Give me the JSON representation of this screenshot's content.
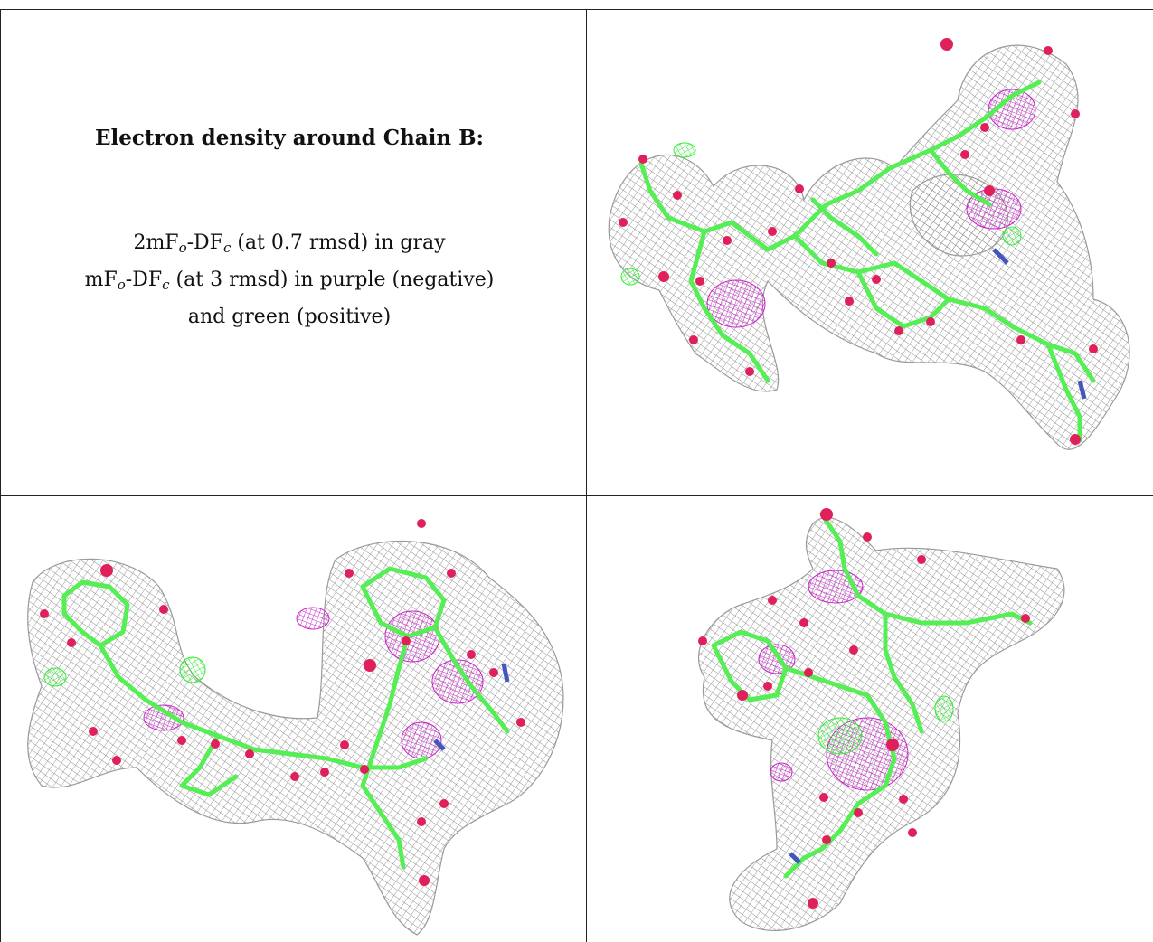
{
  "title": "Electron density around Chain B:",
  "legend": {
    "line1": {
      "prefix": "2mF",
      "sub1": "o",
      "mid": "-DF",
      "sub2": "c",
      "suffix": " (at 0.7 rmsd) in gray"
    },
    "line2": {
      "prefix": "mF",
      "sub1": "o",
      "mid": "-DF",
      "sub2": "c",
      "suffix": " (at 3 rmsd) in purple (negative)"
    },
    "line3": "and green (positive)"
  },
  "colors": {
    "mesh_gray": "#9a9a9a",
    "negative_purple": "#cc22cc",
    "positive_green": "#33ee33",
    "stick_green": "#55ee55",
    "oxygen_red": "#e0205a",
    "nitrogen_blue": "#4455bb"
  },
  "images": [
    {
      "name": "chain-b-density-view-1",
      "description_icon": "molecule-density-icon"
    },
    {
      "name": "chain-b-density-view-2",
      "description_icon": "molecule-density-icon"
    },
    {
      "name": "chain-b-density-view-3",
      "description_icon": "molecule-density-icon"
    }
  ]
}
